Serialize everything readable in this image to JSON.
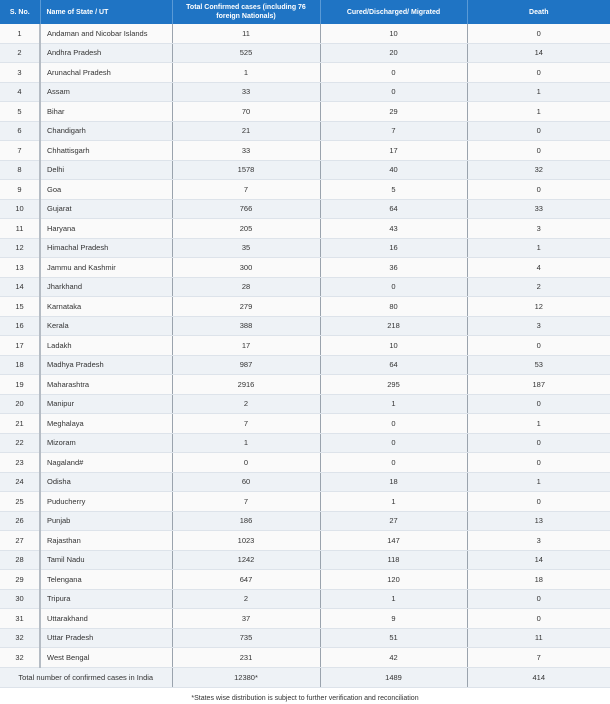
{
  "headers": {
    "sno": "S. No.",
    "name": "Name of State / UT",
    "confirmed": "Total Confirmed cases (including 76 foreign Nationals)",
    "cured": "Cured/Discharged/ Migrated",
    "death": "Death"
  },
  "rows": [
    {
      "sno": "1",
      "name": "Andaman and Nicobar Islands",
      "confirmed": "11",
      "cured": "10",
      "death": "0"
    },
    {
      "sno": "2",
      "name": "Andhra Pradesh",
      "confirmed": "525",
      "cured": "20",
      "death": "14"
    },
    {
      "sno": "3",
      "name": "Arunachal Pradesh",
      "confirmed": "1",
      "cured": "0",
      "death": "0"
    },
    {
      "sno": "4",
      "name": "Assam",
      "confirmed": "33",
      "cured": "0",
      "death": "1"
    },
    {
      "sno": "5",
      "name": "Bihar",
      "confirmed": "70",
      "cured": "29",
      "death": "1"
    },
    {
      "sno": "6",
      "name": "Chandigarh",
      "confirmed": "21",
      "cured": "7",
      "death": "0"
    },
    {
      "sno": "7",
      "name": "Chhattisgarh",
      "confirmed": "33",
      "cured": "17",
      "death": "0"
    },
    {
      "sno": "8",
      "name": "Delhi",
      "confirmed": "1578",
      "cured": "40",
      "death": "32"
    },
    {
      "sno": "9",
      "name": "Goa",
      "confirmed": "7",
      "cured": "5",
      "death": "0"
    },
    {
      "sno": "10",
      "name": "Gujarat",
      "confirmed": "766",
      "cured": "64",
      "death": "33"
    },
    {
      "sno": "11",
      "name": "Haryana",
      "confirmed": "205",
      "cured": "43",
      "death": "3"
    },
    {
      "sno": "12",
      "name": "Himachal Pradesh",
      "confirmed": "35",
      "cured": "16",
      "death": "1"
    },
    {
      "sno": "13",
      "name": "Jammu and Kashmir",
      "confirmed": "300",
      "cured": "36",
      "death": "4"
    },
    {
      "sno": "14",
      "name": "Jharkhand",
      "confirmed": "28",
      "cured": "0",
      "death": "2"
    },
    {
      "sno": "15",
      "name": "Karnataka",
      "confirmed": "279",
      "cured": "80",
      "death": "12"
    },
    {
      "sno": "16",
      "name": "Kerala",
      "confirmed": "388",
      "cured": "218",
      "death": "3"
    },
    {
      "sno": "17",
      "name": "Ladakh",
      "confirmed": "17",
      "cured": "10",
      "death": "0"
    },
    {
      "sno": "18",
      "name": "Madhya Pradesh",
      "confirmed": "987",
      "cured": "64",
      "death": "53"
    },
    {
      "sno": "19",
      "name": "Maharashtra",
      "confirmed": "2916",
      "cured": "295",
      "death": "187"
    },
    {
      "sno": "20",
      "name": "Manipur",
      "confirmed": "2",
      "cured": "1",
      "death": "0"
    },
    {
      "sno": "21",
      "name": "Meghalaya",
      "confirmed": "7",
      "cured": "0",
      "death": "1"
    },
    {
      "sno": "22",
      "name": "Mizoram",
      "confirmed": "1",
      "cured": "0",
      "death": "0"
    },
    {
      "sno": "23",
      "name": "Nagaland#",
      "confirmed": "0",
      "cured": "0",
      "death": "0"
    },
    {
      "sno": "24",
      "name": "Odisha",
      "confirmed": "60",
      "cured": "18",
      "death": "1"
    },
    {
      "sno": "25",
      "name": "Puducherry",
      "confirmed": "7",
      "cured": "1",
      "death": "0"
    },
    {
      "sno": "26",
      "name": "Punjab",
      "confirmed": "186",
      "cured": "27",
      "death": "13"
    },
    {
      "sno": "27",
      "name": "Rajasthan",
      "confirmed": "1023",
      "cured": "147",
      "death": "3"
    },
    {
      "sno": "28",
      "name": "Tamil Nadu",
      "confirmed": "1242",
      "cured": "118",
      "death": "14"
    },
    {
      "sno": "29",
      "name": "Telengana",
      "confirmed": "647",
      "cured": "120",
      "death": "18"
    },
    {
      "sno": "30",
      "name": "Tripura",
      "confirmed": "2",
      "cured": "1",
      "death": "0"
    },
    {
      "sno": "31",
      "name": "Uttarakhand",
      "confirmed": "37",
      "cured": "9",
      "death": "0"
    },
    {
      "sno": "32",
      "name": "Uttar Pradesh",
      "confirmed": "735",
      "cured": "51",
      "death": "11"
    },
    {
      "sno": "32",
      "name": "West Bengal",
      "confirmed": "231",
      "cured": "42",
      "death": "7"
    }
  ],
  "total": {
    "label": "Total number of confirmed cases in India",
    "confirmed": "12380*",
    "cured": "1489",
    "death": "414"
  },
  "footnote": "*States wise distribution is subject to further verification and reconciliation",
  "colors": {
    "header_bg": "#1f74c4",
    "row_alt": "#eef2f6"
  }
}
